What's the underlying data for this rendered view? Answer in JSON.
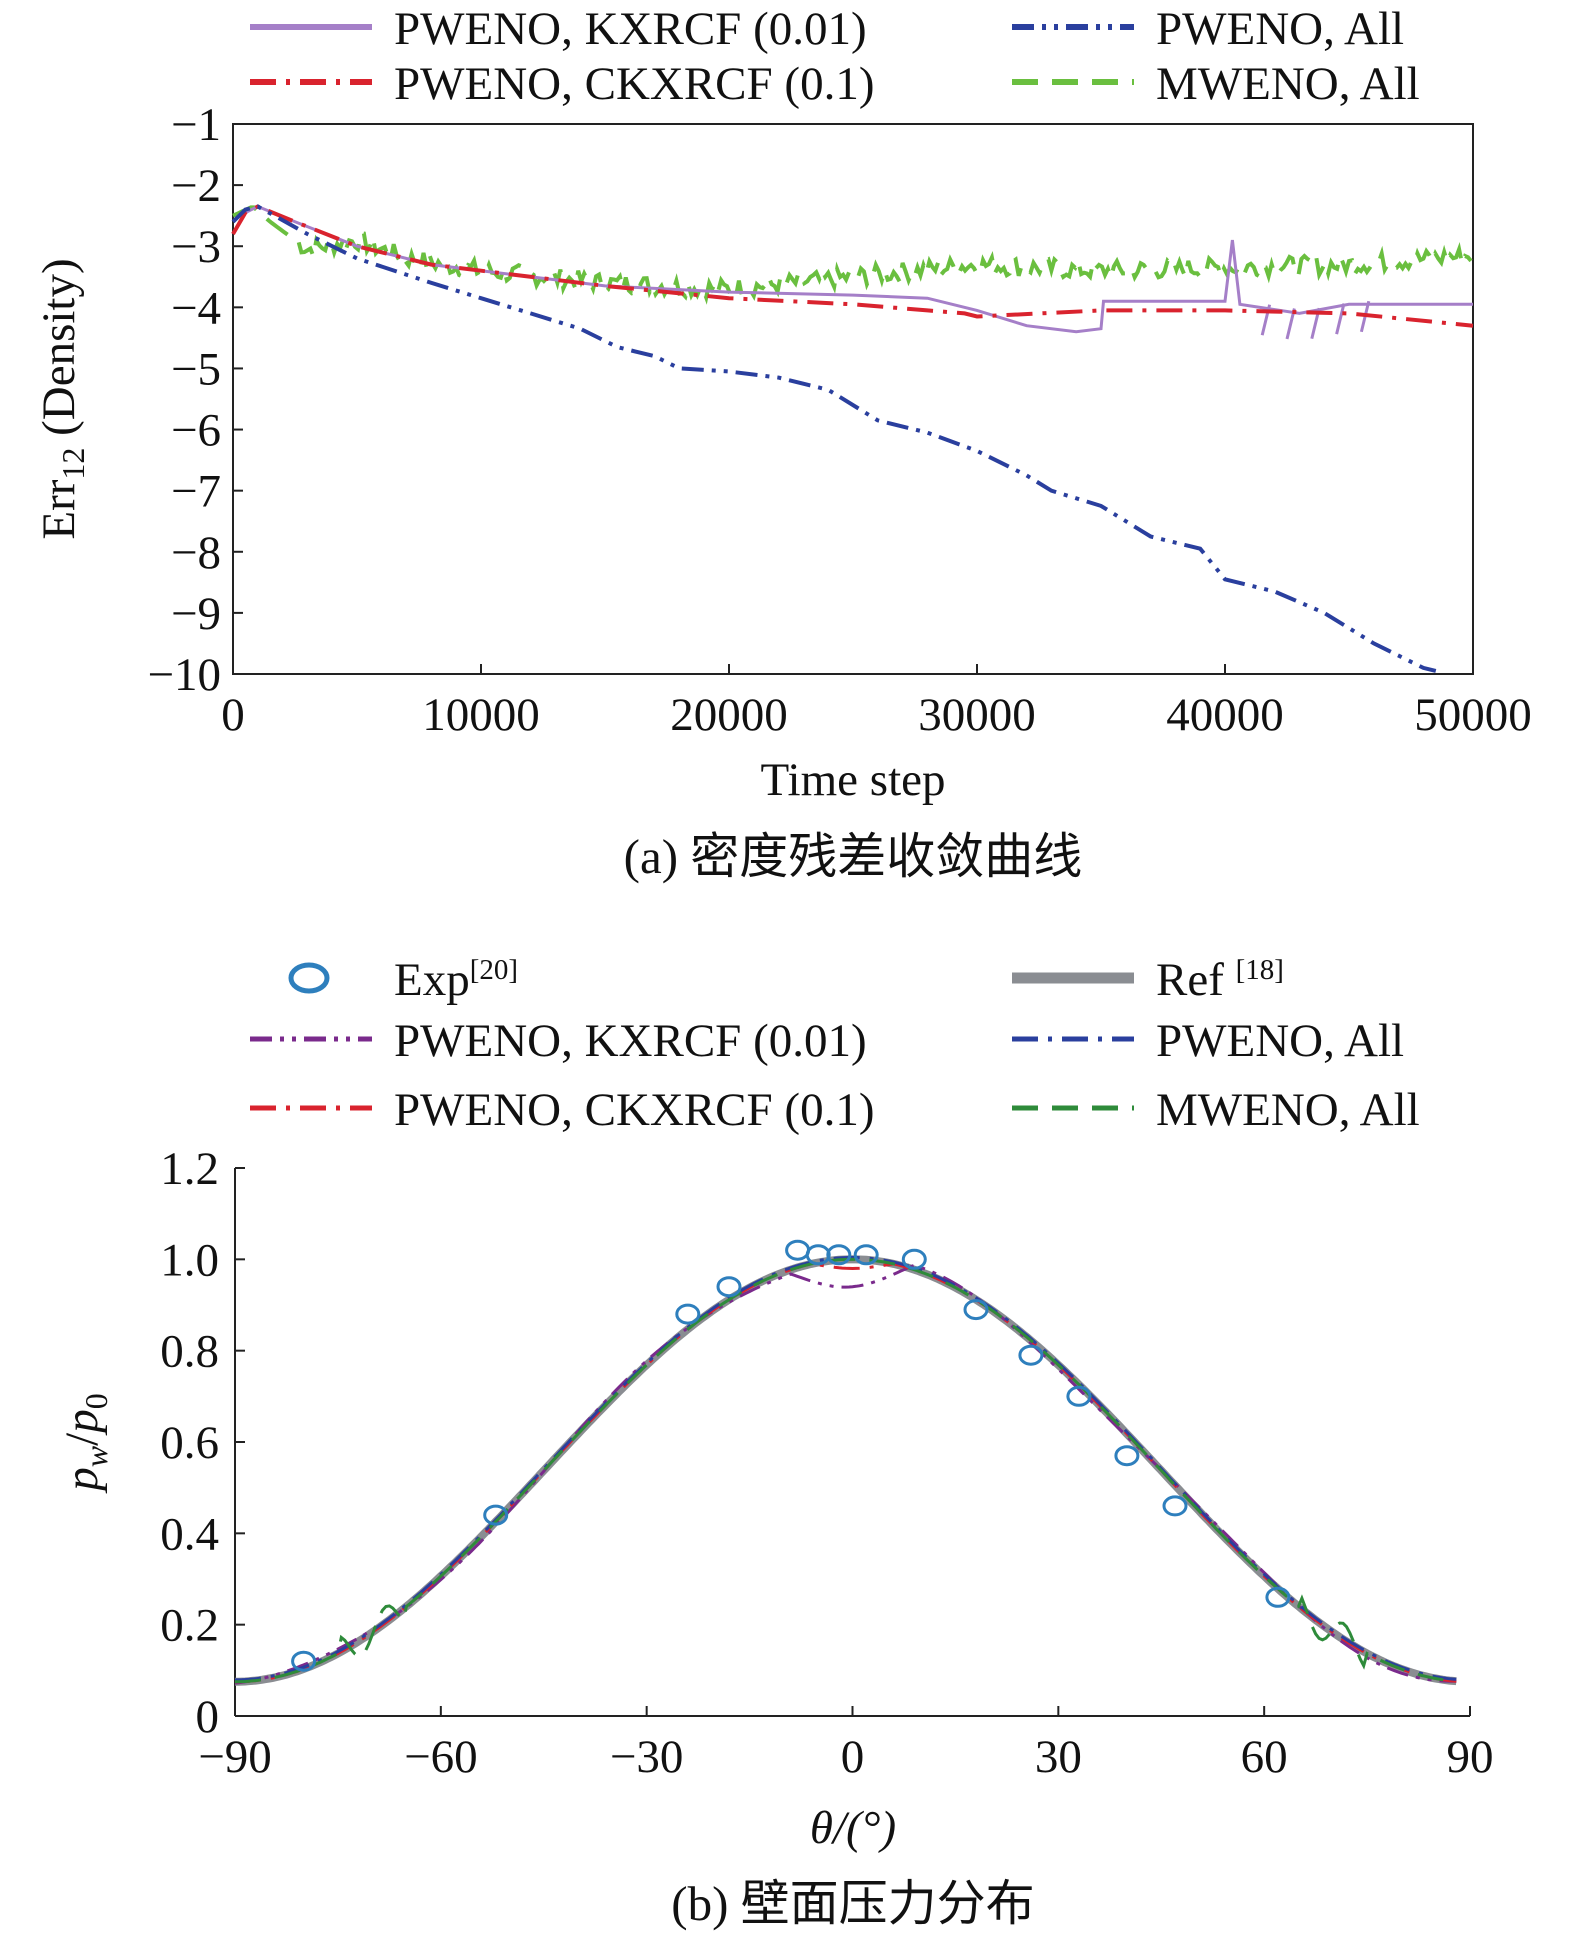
{
  "chart_data": [
    {
      "id": "a",
      "type": "line",
      "caption": "(a) 密度残差收敛曲线",
      "xlabel": "Time step",
      "ylabel_main": "Err",
      "ylabel_sub": "12",
      "ylabel_rest": " (Density)",
      "xlim": [
        0,
        50000
      ],
      "ylim": [
        -10,
        -1
      ],
      "xticks": [
        0,
        10000,
        20000,
        30000,
        40000,
        50000
      ],
      "yticks": [
        -1,
        -2,
        -3,
        -4,
        -5,
        -6,
        -7,
        -8,
        -9,
        -10
      ],
      "legend_position": "top",
      "series": [
        {
          "name": "PWENO, KXRCF (0.01)",
          "color": "#a57fc8",
          "style": "solid",
          "points": [
            [
              0,
              -2.8
            ],
            [
              500,
              -2.45
            ],
            [
              1000,
              -2.35
            ],
            [
              2500,
              -2.6
            ],
            [
              5000,
              -3.0
            ],
            [
              8000,
              -3.3
            ],
            [
              10000,
              -3.4
            ],
            [
              15000,
              -3.65
            ],
            [
              20000,
              -3.75
            ],
            [
              25000,
              -3.8
            ],
            [
              28000,
              -3.85
            ],
            [
              30000,
              -4.05
            ],
            [
              32000,
              -4.3
            ],
            [
              34000,
              -4.4
            ],
            [
              35000,
              -4.35
            ],
            [
              35100,
              -3.9
            ],
            [
              38000,
              -3.9
            ],
            [
              40000,
              -3.9
            ],
            [
              40300,
              -2.9
            ],
            [
              40600,
              -3.95
            ],
            [
              43000,
              -4.1
            ],
            [
              45000,
              -3.95
            ],
            [
              48000,
              -3.95
            ],
            [
              50000,
              -3.95
            ]
          ]
        },
        {
          "name": "PWENO, CKXRCF (0.1)",
          "color": "#d9232e",
          "style": "dashdot",
          "points": [
            [
              0,
              -2.8
            ],
            [
              500,
              -2.45
            ],
            [
              1000,
              -2.35
            ],
            [
              2500,
              -2.6
            ],
            [
              5000,
              -3.0
            ],
            [
              8000,
              -3.3
            ],
            [
              10000,
              -3.4
            ],
            [
              15000,
              -3.65
            ],
            [
              20000,
              -3.85
            ],
            [
              25000,
              -3.95
            ],
            [
              28000,
              -4.05
            ],
            [
              29500,
              -4.1
            ],
            [
              30000,
              -4.15
            ],
            [
              35000,
              -4.05
            ],
            [
              40000,
              -4.05
            ],
            [
              45000,
              -4.1
            ],
            [
              50000,
              -4.3
            ]
          ]
        },
        {
          "name": "PWENO, All",
          "color": "#2a3f9e",
          "style": "dashdotdot",
          "points": [
            [
              0,
              -2.6
            ],
            [
              500,
              -2.4
            ],
            [
              1000,
              -2.35
            ],
            [
              3000,
              -2.8
            ],
            [
              5000,
              -3.2
            ],
            [
              8000,
              -3.6
            ],
            [
              10000,
              -3.85
            ],
            [
              12000,
              -4.1
            ],
            [
              14000,
              -4.35
            ],
            [
              15500,
              -4.65
            ],
            [
              17000,
              -4.8
            ],
            [
              18000,
              -5.0
            ],
            [
              20000,
              -5.05
            ],
            [
              22000,
              -5.15
            ],
            [
              24000,
              -5.35
            ],
            [
              26000,
              -5.85
            ],
            [
              28000,
              -6.05
            ],
            [
              30000,
              -6.35
            ],
            [
              32000,
              -6.75
            ],
            [
              33000,
              -7.0
            ],
            [
              35000,
              -7.25
            ],
            [
              37000,
              -7.75
            ],
            [
              39000,
              -7.95
            ],
            [
              40000,
              -8.45
            ],
            [
              42000,
              -8.65
            ],
            [
              44000,
              -9.0
            ],
            [
              46000,
              -9.5
            ],
            [
              48000,
              -9.9
            ],
            [
              48500,
              -9.95
            ]
          ]
        },
        {
          "name": "MWENO, All",
          "color": "#6abf3f",
          "style": "dashed",
          "points": [
            [
              0,
              -2.5
            ],
            [
              800,
              -2.35
            ],
            [
              1500,
              -2.6
            ],
            [
              3000,
              -3.05
            ],
            [
              5000,
              -2.9
            ],
            [
              7000,
              -3.2
            ],
            [
              10000,
              -3.4
            ],
            [
              15000,
              -3.6
            ],
            [
              20000,
              -3.7
            ],
            [
              25000,
              -3.5
            ],
            [
              30000,
              -3.3
            ],
            [
              35000,
              -3.4
            ],
            [
              40000,
              -3.35
            ],
            [
              45000,
              -3.3
            ],
            [
              50000,
              -3.15
            ]
          ]
        }
      ]
    },
    {
      "id": "b",
      "type": "line",
      "caption": "(b) 壁面压力分布",
      "xlabel": "θ/(°)",
      "ylabel": "p_w/p_0",
      "xlim": [
        -90,
        90
      ],
      "ylim": [
        0,
        1.2
      ],
      "xticks": [
        -90,
        -60,
        -30,
        0,
        30,
        60,
        90
      ],
      "yticks": [
        0,
        0.2,
        0.4,
        0.6,
        0.8,
        1.0,
        1.2
      ],
      "ytick_labels": [
        "0",
        "0.2",
        "0.4",
        "0.6",
        "0.8",
        "1.0",
        "1.2"
      ],
      "legend_position": "top",
      "experiment": {
        "name": "Exp",
        "ref": "[20]",
        "color": "#2e7fbd",
        "points": [
          [
            -80,
            0.12
          ],
          [
            -52,
            0.44
          ],
          [
            -24,
            0.88
          ],
          [
            -18,
            0.94
          ],
          [
            -8,
            1.02
          ],
          [
            -5,
            1.01
          ],
          [
            -2,
            1.01
          ],
          [
            2,
            1.01
          ],
          [
            9,
            1.0
          ],
          [
            18,
            0.89
          ],
          [
            26,
            0.79
          ],
          [
            33,
            0.7
          ],
          [
            40,
            0.57
          ],
          [
            47,
            0.46
          ],
          [
            62,
            0.26
          ]
        ]
      },
      "reference": {
        "name": "Ref ",
        "ref": "[18]",
        "color": "#8a8d92"
      },
      "series": [
        {
          "name": "PWENO, KXRCF (0.01)",
          "color": "#7a2a8c",
          "style": "dashdotdot",
          "variant": "kxrcf"
        },
        {
          "name": "PWENO, CKXRCF (0.1)",
          "color": "#d9232e",
          "style": "dashdot",
          "variant": "ckxrcf"
        },
        {
          "name": "PWENO, All",
          "color": "#2a3f9e",
          "style": "dashdot",
          "variant": "all"
        },
        {
          "name": "MWENO, All",
          "color": "#2e8b3a",
          "style": "dashed",
          "variant": "mweno"
        }
      ]
    }
  ]
}
